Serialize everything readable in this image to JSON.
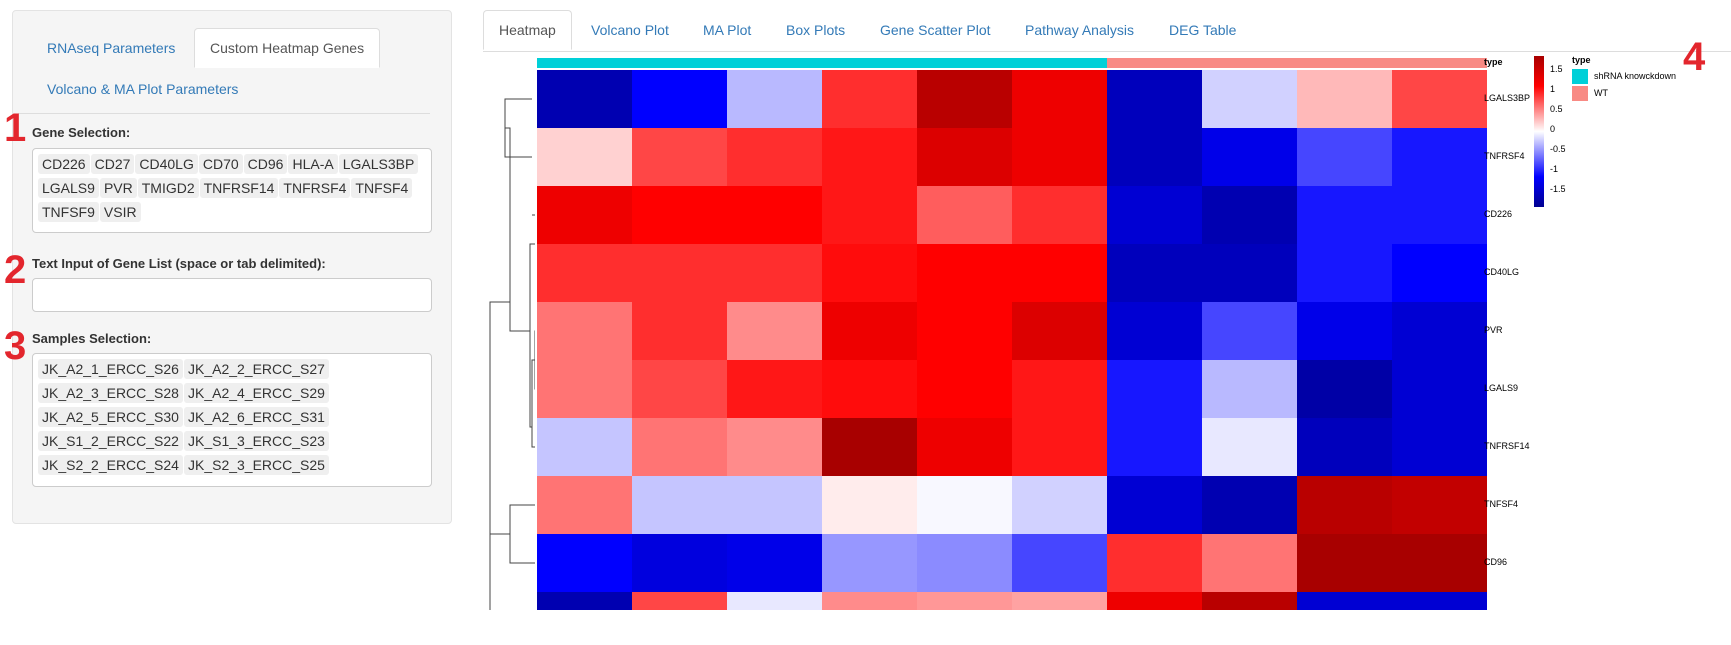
{
  "left_panel": {
    "tabs": [
      "RNAseq Parameters",
      "Custom Heatmap Genes",
      "Volcano & MA Plot Parameters"
    ],
    "gene_selection": {
      "step": "1",
      "label": "Gene Selection:",
      "chips": [
        "CD226",
        "CD27",
        "CD40LG",
        "CD70",
        "CD96",
        "HLA-A",
        "LGALS3BP",
        "LGALS9",
        "PVR",
        "TMIGD2",
        "TNFRSF14",
        "TNFRSF4",
        "TNFSF4",
        "TNFSF9",
        "VSIR"
      ]
    },
    "text_input": {
      "step": "2",
      "label": "Text Input of Gene List (space or tab delimited):",
      "value": ""
    },
    "samples_selection": {
      "step": "3",
      "label": "Samples Selection:",
      "chips": [
        "JK_A2_1_ERCC_S26",
        "JK_A2_2_ERCC_S27",
        "JK_A2_3_ERCC_S28",
        "JK_A2_4_ERCC_S29",
        "JK_A2_5_ERCC_S30",
        "JK_A2_6_ERCC_S31",
        "JK_S1_2_ERCC_S22",
        "JK_S1_3_ERCC_S23",
        "JK_S2_2_ERCC_S24",
        "JK_S2_3_ERCC_S25"
      ]
    }
  },
  "right_tabs": [
    "Heatmap",
    "Volcano Plot",
    "MA Plot",
    "Box Plots",
    "Gene Scatter Plot",
    "Pathway Analysis",
    "DEG Table"
  ],
  "step4": "4",
  "heatmap": {
    "annotation_label": "type",
    "annotation_groups": [
      {
        "name": "shRNA knowckdown",
        "color": "#00d0d8",
        "count": 6
      },
      {
        "name": "WT",
        "color": "#f88a84",
        "count": 4
      }
    ],
    "color_legend": {
      "title_values": [
        "1.5",
        "1",
        "0.5",
        "0",
        "-0.5",
        "-1",
        "-1.5"
      ],
      "high": "#a80000",
      "mid": "#ffffff",
      "low": "#000090"
    },
    "rows": [
      {
        "gene": "LGALS3BP",
        "values": [
          -1.45,
          -1.1,
          -0.3,
          0.9,
          1.5,
          1.2,
          -1.4,
          -0.2,
          0.3,
          0.8
        ]
      },
      {
        "gene": "TNFRSF4",
        "values": [
          0.2,
          0.8,
          0.9,
          1.0,
          1.3,
          1.2,
          -1.4,
          -1.2,
          -0.8,
          -1.0
        ]
      },
      {
        "gene": "CD226",
        "values": [
          1.2,
          1.1,
          1.1,
          1.0,
          0.7,
          0.9,
          -1.3,
          -1.45,
          -1.0,
          -1.0
        ]
      },
      {
        "gene": "CD40LG",
        "values": [
          0.9,
          0.9,
          0.9,
          1.05,
          1.1,
          1.1,
          -1.4,
          -1.4,
          -1.0,
          -1.1
        ]
      },
      {
        "gene": "PVR",
        "values": [
          0.6,
          0.9,
          0.5,
          1.2,
          1.1,
          1.3,
          -1.3,
          -0.8,
          -1.2,
          -1.3
        ]
      },
      {
        "gene": "LGALS9",
        "values": [
          0.6,
          0.8,
          1.0,
          1.05,
          1.1,
          1.0,
          -1.0,
          -0.3,
          -1.5,
          -1.3
        ]
      },
      {
        "gene": "TNFRSF14",
        "values": [
          -0.25,
          0.6,
          0.5,
          1.6,
          1.2,
          1.0,
          -1.0,
          -0.1,
          -1.4,
          -1.3
        ]
      },
      {
        "gene": "TNFSF4",
        "values": [
          0.6,
          -0.25,
          -0.25,
          0.08,
          -0.03,
          -0.2,
          -1.3,
          -1.45,
          1.5,
          1.45
        ]
      },
      {
        "gene": "CD96",
        "values": [
          -1.1,
          -1.25,
          -1.2,
          -0.45,
          -0.5,
          -0.8,
          0.9,
          0.6,
          1.6,
          1.6
        ]
      },
      {
        "gene": "",
        "values": [
          -1.45,
          0.8,
          -0.1,
          0.5,
          0.45,
          0.4,
          1.2,
          1.5,
          -1.3,
          -1.3
        ]
      }
    ]
  }
}
